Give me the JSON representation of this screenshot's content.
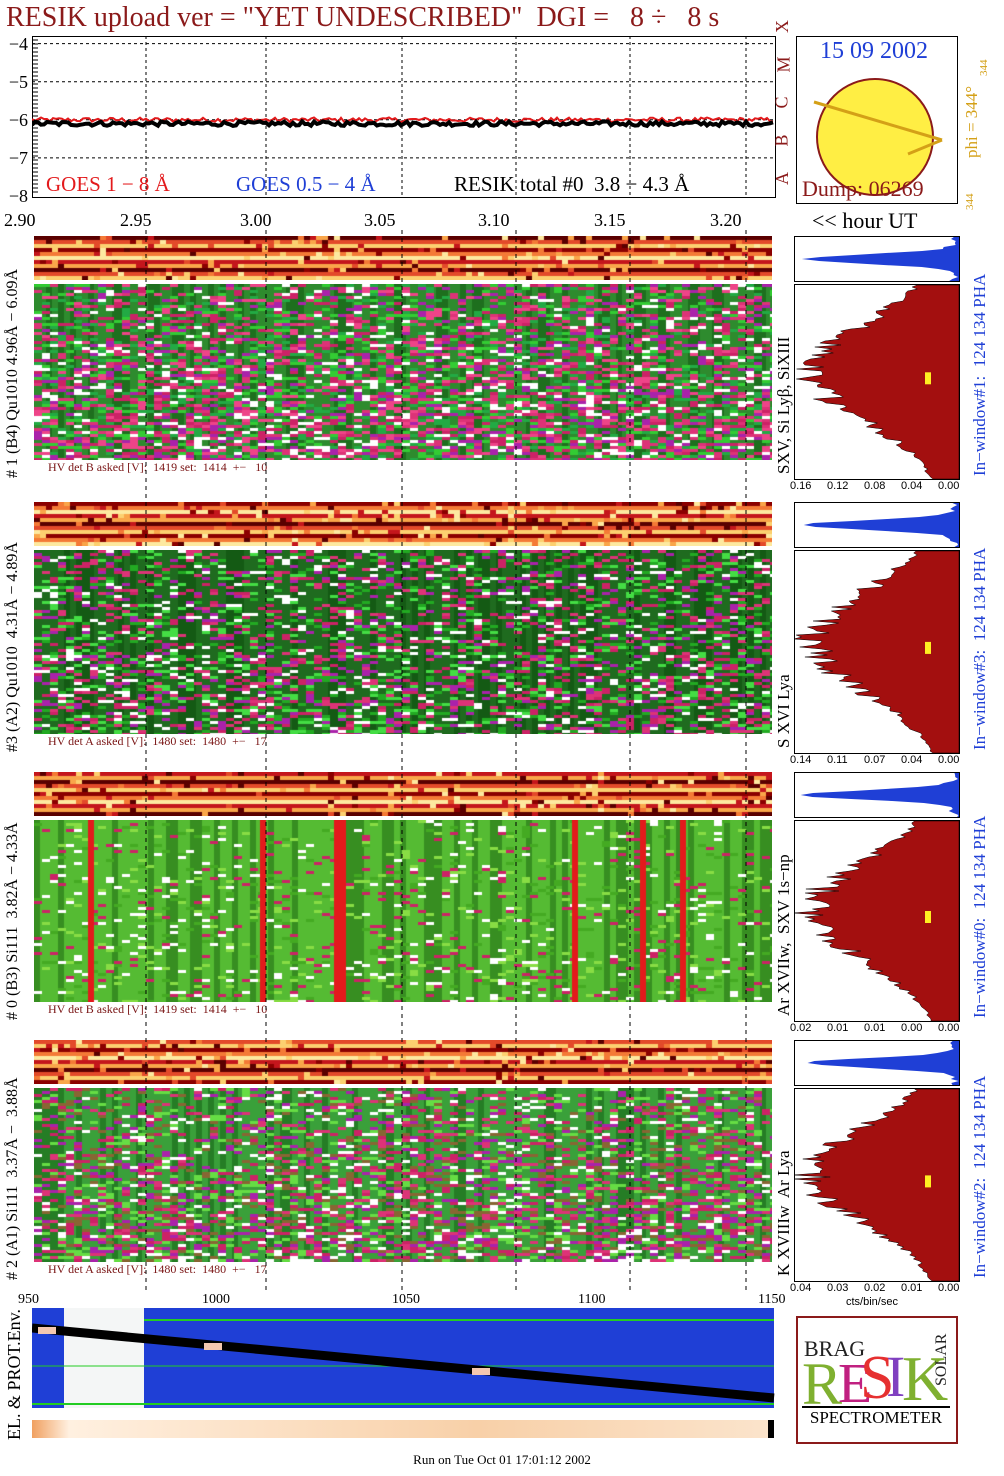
{
  "title": "RESIK upload ver = \"YET UNDESCRIBED\"  DGI =   8 ÷   8 s",
  "goes_panel": {
    "y_ticks": [
      "−4",
      "−5",
      "−6",
      "−7",
      "−8"
    ],
    "class_letters": [
      "A",
      "B",
      "C",
      "M",
      "X"
    ],
    "legend": {
      "goes_long": "GOES 1 − 8 Å",
      "goes_short": "GOES 0.5 − 4 Å",
      "resik": "RESIK total #0  3.8 − 4.3 Å"
    },
    "colors": {
      "goes_long": "#e31a1c",
      "goes_short": "#1f3fd6",
      "resik": "#000000"
    }
  },
  "sun": {
    "date": "15 09 2002",
    "dump": "Dump: 06269",
    "phi_label": "phi = 344°",
    "phi_sub": "344",
    "phi_bottom": "344"
  },
  "time_axis": {
    "ticks": [
      "2.90",
      "2.95",
      "3.00",
      "3.05",
      "3.10",
      "3.15",
      "3.20"
    ],
    "unit_label": "<< hour UT"
  },
  "detectors": [
    {
      "left_label": "# 1 (B4) Qu1010 4.96Å − 6.09Å",
      "line_label": "SXV, Si Lyβ, SiXIII",
      "hv_text": "HV det B asked [V]:  1419 set:  1414  +−   10",
      "window_label": "In−window#1:  124 134 PHA",
      "hist_ticks": [
        "0.16",
        "0.12",
        "0.08",
        "0.04",
        "0.00"
      ],
      "scheme": "pink"
    },
    {
      "left_label": "#3 (A2) Qu1010  4.31Å − 4.89Å",
      "line_label": "S XVI Lya",
      "hv_text": "HV det A asked [V]:  1480 set:  1480  +−   17",
      "window_label": "In−window#3:  124 134 PHA",
      "hist_ticks": [
        "0.14",
        "0.11",
        "0.07",
        "0.04",
        "0.00"
      ],
      "scheme": "dark"
    },
    {
      "left_label": "# 0 (B3) Si111  3.82Å − 4.33Å",
      "line_label": "Ar XVIIw,  SXV 1s−np",
      "hv_text": "HV det B asked [V]:  1419 set:  1414  +−   10",
      "window_label": "In−window#0:  124 134 PHA",
      "hist_ticks": [
        "0.02",
        "0.01",
        "0.01",
        "0.00",
        "0.00"
      ],
      "scheme": "light"
    },
    {
      "left_label": "# 2 (A1) Si111  3.37Å −  3.88Å",
      "line_label": "K XVIIIw  Ar Lya",
      "hv_text": "HV det A asked [V]:  1480 set:  1480  +−   17",
      "window_label": "In−window#2:  124 134 PHA",
      "hist_ticks": [
        "0.04",
        "0.03",
        "0.02",
        "0.01",
        "0.00"
      ],
      "hist_unit": "cts/bin/sec",
      "scheme": "mixed"
    }
  ],
  "env_panel": {
    "label": "EL. & PROT.Env.",
    "ticks": [
      "950",
      "1000",
      "1050",
      "1100",
      "1150"
    ]
  },
  "logo": {
    "letters": "RESIK",
    "small1": "BRAG",
    "small2": "SOLAR",
    "caption": "SPECTROMETER"
  },
  "footer": "Run on Tue Oct 01 17:01:12 2002",
  "chart_data": [
    {
      "type": "line",
      "title": "RESIK upload ver = \"YET UNDESCRIBED\"  DGI =   8 ÷   8 s",
      "xlabel": "hour UT",
      "ylabel": "",
      "x_ticks": [
        "2.90",
        "2.95",
        "3.00",
        "3.05",
        "3.10",
        "3.15",
        "3.20"
      ],
      "xlim": [
        2.9,
        3.22
      ],
      "ylim": [
        -8,
        -3.8
      ],
      "series": [
        {
          "name": "GOES 1 − 8 Å",
          "level": -6.0
        },
        {
          "name": "GOES 0.5 − 4 Å",
          "level": -8.0
        },
        {
          "name": "RESIK total #0  3.8 − 4.3 Å",
          "level": -6.1
        }
      ]
    },
    {
      "type": "heatmap",
      "panels": [
        "#1",
        "#3",
        "#0",
        "#2"
      ]
    }
  ]
}
